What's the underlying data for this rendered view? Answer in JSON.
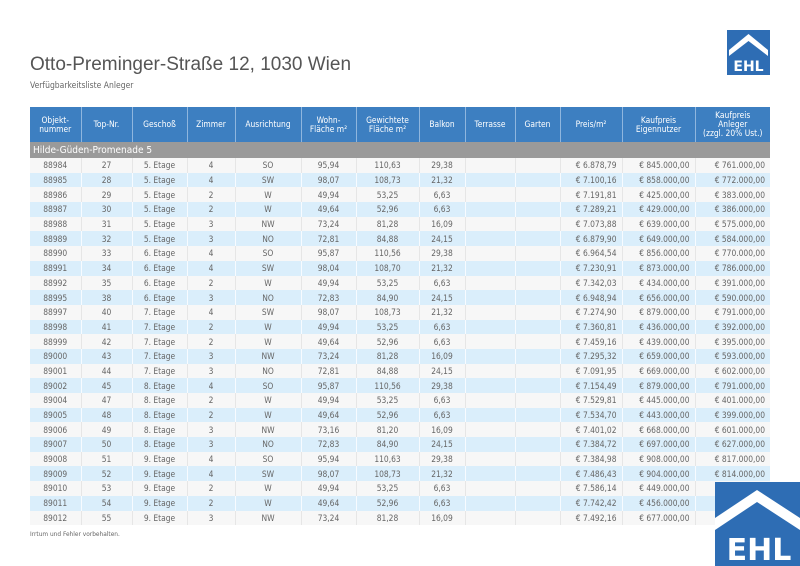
{
  "header": {
    "title": "Otto-Preminger-Straße 12, 1030 Wien",
    "subtitle": "Verfügbarkeitsliste Anleger",
    "logo_text": "EHL"
  },
  "colors": {
    "header_blue": "#3d7fc1",
    "logo_blue": "#2e6db4",
    "group_gray": "#9a9a9a",
    "row_alt": "#daeefb"
  },
  "table": {
    "columns": [
      "Objekt-\nnummer",
      "Top-Nr.",
      "Geschoß",
      "Zimmer",
      "Ausrichtung",
      "Wohn-\nFläche m²",
      "Gewichtete\nFläche m²",
      "Balkon",
      "Terrasse",
      "Garten",
      "Preis/m²",
      "Kaufpreis\nEigennutzer",
      "Kaufpreis\nAnleger\n(zzgl. 20% Ust.)"
    ],
    "group": "Hilde-Güden-Promenade 5",
    "rows": [
      [
        "88984",
        "27",
        "5. Etage",
        "4",
        "SO",
        "95,94",
        "110,63",
        "29,38",
        "",
        "",
        "€ 6.878,79",
        "€ 845.000,00",
        "€ 761.000,00"
      ],
      [
        "88985",
        "28",
        "5. Etage",
        "4",
        "SW",
        "98,07",
        "108,73",
        "21,32",
        "",
        "",
        "€ 7.100,16",
        "€ 858.000,00",
        "€ 772.000,00"
      ],
      [
        "88986",
        "29",
        "5. Etage",
        "2",
        "W",
        "49,94",
        "53,25",
        "6,63",
        "",
        "",
        "€ 7.191,81",
        "€ 425.000,00",
        "€ 383.000,00"
      ],
      [
        "88987",
        "30",
        "5. Etage",
        "2",
        "W",
        "49,64",
        "52,96",
        "6,63",
        "",
        "",
        "€ 7.289,21",
        "€ 429.000,00",
        "€ 386.000,00"
      ],
      [
        "88988",
        "31",
        "5. Etage",
        "3",
        "NW",
        "73,24",
        "81,28",
        "16,09",
        "",
        "",
        "€ 7.073,88",
        "€ 639.000,00",
        "€ 575.000,00"
      ],
      [
        "88989",
        "32",
        "5. Etage",
        "3",
        "NO",
        "72,81",
        "84,88",
        "24,15",
        "",
        "",
        "€ 6.879,90",
        "€ 649.000,00",
        "€ 584.000,00"
      ],
      [
        "88990",
        "33",
        "6. Etage",
        "4",
        "SO",
        "95,87",
        "110,56",
        "29,38",
        "",
        "",
        "€ 6.964,54",
        "€ 856.000,00",
        "€ 770.000,00"
      ],
      [
        "88991",
        "34",
        "6. Etage",
        "4",
        "SW",
        "98,04",
        "108,70",
        "21,32",
        "",
        "",
        "€ 7.230,91",
        "€ 873.000,00",
        "€ 786.000,00"
      ],
      [
        "88992",
        "35",
        "6. Etage",
        "2",
        "W",
        "49,94",
        "53,25",
        "6,63",
        "",
        "",
        "€ 7.342,03",
        "€ 434.000,00",
        "€ 391.000,00"
      ],
      [
        "88995",
        "38",
        "6. Etage",
        "3",
        "NO",
        "72,83",
        "84,90",
        "24,15",
        "",
        "",
        "€ 6.948,94",
        "€ 656.000,00",
        "€ 590.000,00"
      ],
      [
        "88997",
        "40",
        "7. Etage",
        "4",
        "SW",
        "98,07",
        "108,73",
        "21,32",
        "",
        "",
        "€ 7.274,90",
        "€ 879.000,00",
        "€ 791.000,00"
      ],
      [
        "88998",
        "41",
        "7. Etage",
        "2",
        "W",
        "49,94",
        "53,25",
        "6,63",
        "",
        "",
        "€ 7.360,81",
        "€ 436.000,00",
        "€ 392.000,00"
      ],
      [
        "88999",
        "42",
        "7. Etage",
        "2",
        "W",
        "49,64",
        "52,96",
        "6,63",
        "",
        "",
        "€ 7.459,16",
        "€ 439.000,00",
        "€ 395.000,00"
      ],
      [
        "89000",
        "43",
        "7. Etage",
        "3",
        "NW",
        "73,24",
        "81,28",
        "16,09",
        "",
        "",
        "€ 7.295,32",
        "€ 659.000,00",
        "€ 593.000,00"
      ],
      [
        "89001",
        "44",
        "7. Etage",
        "3",
        "NO",
        "72,81",
        "84,88",
        "24,15",
        "",
        "",
        "€ 7.091,95",
        "€ 669.000,00",
        "€ 602.000,00"
      ],
      [
        "89002",
        "45",
        "8. Etage",
        "4",
        "SO",
        "95,87",
        "110,56",
        "29,38",
        "",
        "",
        "€ 7.154,49",
        "€ 879.000,00",
        "€ 791.000,00"
      ],
      [
        "89004",
        "47",
        "8. Etage",
        "2",
        "W",
        "49,94",
        "53,25",
        "6,63",
        "",
        "",
        "€ 7.529,81",
        "€ 445.000,00",
        "€ 401.000,00"
      ],
      [
        "89005",
        "48",
        "8. Etage",
        "2",
        "W",
        "49,64",
        "52,96",
        "6,63",
        "",
        "",
        "€ 7.534,70",
        "€ 443.000,00",
        "€ 399.000,00"
      ],
      [
        "89006",
        "49",
        "8. Etage",
        "3",
        "NW",
        "73,16",
        "81,20",
        "16,09",
        "",
        "",
        "€ 7.401,02",
        "€ 668.000,00",
        "€ 601.000,00"
      ],
      [
        "89007",
        "50",
        "8. Etage",
        "3",
        "NO",
        "72,83",
        "84,90",
        "24,15",
        "",
        "",
        "€ 7.384,72",
        "€ 697.000,00",
        "€ 627.000,00"
      ],
      [
        "89008",
        "51",
        "9. Etage",
        "4",
        "SO",
        "95,94",
        "110,63",
        "29,38",
        "",
        "",
        "€ 7.384,98",
        "€ 908.000,00",
        "€ 817.000,00"
      ],
      [
        "89009",
        "52",
        "9. Etage",
        "4",
        "SW",
        "98,07",
        "108,73",
        "21,32",
        "",
        "",
        "€ 7.486,43",
        "€ 904.000,00",
        "€ 814.000,00"
      ],
      [
        "89010",
        "53",
        "9. Etage",
        "2",
        "W",
        "49,94",
        "53,25",
        "6,63",
        "",
        "",
        "€ 7.586,14",
        "€ 449.000,00",
        "€"
      ],
      [
        "89011",
        "54",
        "9. Etage",
        "2",
        "W",
        "49,64",
        "52,96",
        "6,63",
        "",
        "",
        "€ 7.742,42",
        "€ 456.000,00",
        "€"
      ],
      [
        "89012",
        "55",
        "9. Etage",
        "3",
        "NW",
        "73,24",
        "81,28",
        "16,09",
        "",
        "",
        "€ 7.492,16",
        "€ 677.000,00",
        "€"
      ]
    ]
  },
  "footer": "Irrtum und Fehler vorbehalten."
}
